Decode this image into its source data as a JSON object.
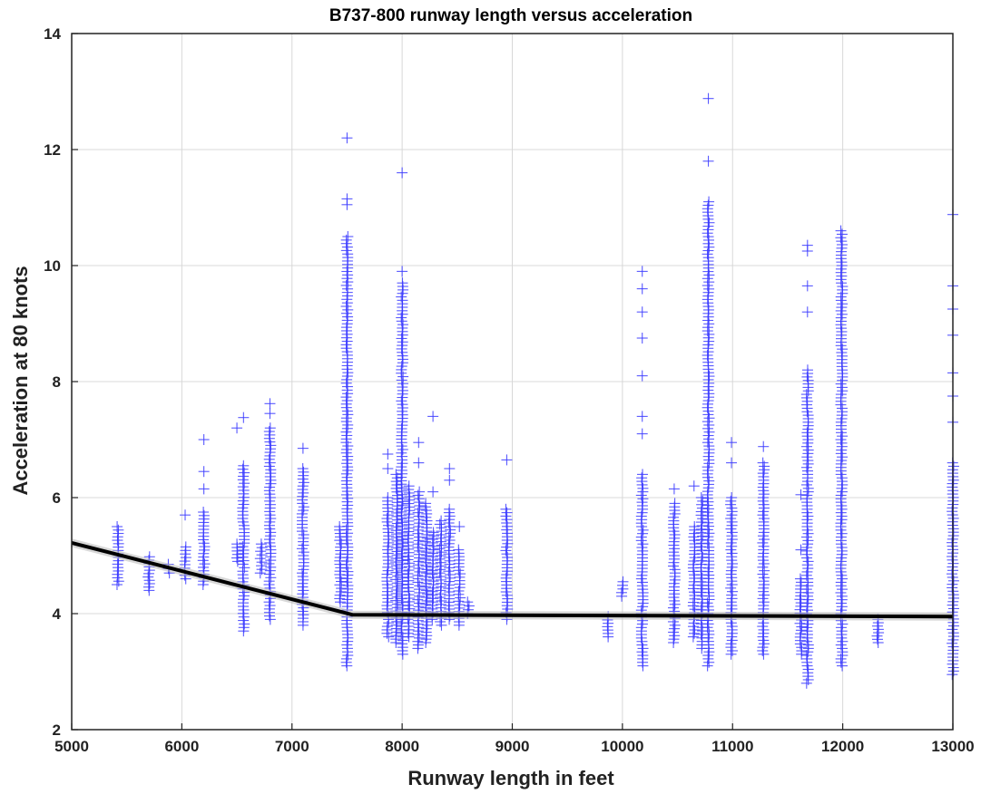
{
  "chart_data": {
    "type": "scatter",
    "title": "B737-800 runway length versus acceleration",
    "xlabel": "Runway length in feet",
    "ylabel": "Acceleration at 80 knots",
    "xlim": [
      5000,
      13000
    ],
    "ylim": [
      2,
      14
    ],
    "xticks": [
      5000,
      6000,
      7000,
      8000,
      9000,
      10000,
      11000,
      12000,
      13000
    ],
    "yticks": [
      2,
      4,
      6,
      8,
      10,
      12,
      14
    ],
    "grid": true,
    "marker": "+",
    "marker_color": "#3b3bff",
    "fit_color": "#000000",
    "fit_line": {
      "x": [
        5000,
        7550,
        13000
      ],
      "y": [
        5.22,
        3.98,
        3.95
      ]
    },
    "series": [
      {
        "columns": [
          {
            "x": 5420,
            "min": 4.5,
            "max": 5.5,
            "extra": []
          },
          {
            "x": 5700,
            "min": 4.4,
            "max": 4.98,
            "extra": []
          },
          {
            "x": 5880,
            "min": 4.7,
            "max": 4.85,
            "extra": []
          },
          {
            "x": 6030,
            "min": 4.6,
            "max": 5.15,
            "extra": [
              5.7
            ]
          },
          {
            "x": 6200,
            "min": 4.5,
            "max": 5.75,
            "extra": [
              6.15,
              6.45,
              7.0
            ]
          },
          {
            "x": 6500,
            "min": 4.9,
            "max": 5.2,
            "extra": [
              7.2
            ]
          },
          {
            "x": 6560,
            "min": 3.7,
            "max": 6.55,
            "extra": [
              7.38
            ]
          },
          {
            "x": 6720,
            "min": 4.7,
            "max": 5.2,
            "extra": []
          },
          {
            "x": 6800,
            "min": 3.9,
            "max": 7.2,
            "extra": [
              7.45,
              7.62
            ]
          },
          {
            "x": 7100,
            "min": 3.8,
            "max": 6.5,
            "extra": [
              6.85
            ]
          },
          {
            "x": 7440,
            "min": 4.2,
            "max": 5.5,
            "extra": []
          },
          {
            "x": 7500,
            "min": 3.1,
            "max": 10.5,
            "extra": [
              11.05,
              11.15,
              12.2
            ]
          },
          {
            "x": 7870,
            "min": 3.6,
            "max": 6.0,
            "extra": [
              6.5,
              6.75
            ]
          },
          {
            "x": 7950,
            "min": 3.5,
            "max": 6.4,
            "extra": []
          },
          {
            "x": 8000,
            "min": 3.3,
            "max": 9.7,
            "extra": [
              9.9,
              11.6
            ]
          },
          {
            "x": 8060,
            "min": 3.6,
            "max": 6.2,
            "extra": []
          },
          {
            "x": 8150,
            "min": 3.4,
            "max": 6.1,
            "extra": [
              6.6,
              6.95
            ]
          },
          {
            "x": 8220,
            "min": 3.5,
            "max": 5.9,
            "extra": []
          },
          {
            "x": 8280,
            "min": 3.9,
            "max": 5.4,
            "extra": [
              6.1,
              7.4
            ]
          },
          {
            "x": 8350,
            "min": 3.8,
            "max": 5.6,
            "extra": []
          },
          {
            "x": 8430,
            "min": 3.9,
            "max": 5.8,
            "extra": [
              6.3,
              6.5
            ]
          },
          {
            "x": 8520,
            "min": 3.8,
            "max": 5.1,
            "extra": [
              5.5
            ]
          },
          {
            "x": 8600,
            "min": 4.0,
            "max": 4.2,
            "extra": []
          },
          {
            "x": 8950,
            "min": 3.9,
            "max": 5.8,
            "extra": [
              6.65
            ]
          },
          {
            "x": 9870,
            "min": 3.6,
            "max": 3.95,
            "extra": []
          },
          {
            "x": 10000,
            "min": 4.3,
            "max": 4.55,
            "extra": []
          },
          {
            "x": 10180,
            "min": 3.1,
            "max": 6.4,
            "extra": [
              7.1,
              7.4,
              8.1,
              8.75,
              9.2,
              9.6,
              9.9
            ]
          },
          {
            "x": 10470,
            "min": 3.5,
            "max": 5.9,
            "extra": [
              6.15
            ]
          },
          {
            "x": 10650,
            "min": 3.6,
            "max": 5.5,
            "extra": [
              6.2
            ]
          },
          {
            "x": 10720,
            "min": 3.4,
            "max": 6.0,
            "extra": []
          },
          {
            "x": 10780,
            "min": 3.1,
            "max": 11.1,
            "extra": [
              11.8,
              12.88
            ]
          },
          {
            "x": 10990,
            "min": 3.3,
            "max": 6.0,
            "extra": [
              6.6,
              6.95
            ]
          },
          {
            "x": 11280,
            "min": 3.3,
            "max": 6.6,
            "extra": [
              6.88
            ]
          },
          {
            "x": 11620,
            "min": 3.3,
            "max": 4.6,
            "extra": [
              5.1,
              6.05
            ]
          },
          {
            "x": 11680,
            "min": 2.8,
            "max": 8.2,
            "extra": [
              9.2,
              9.65,
              10.25,
              10.35
            ]
          },
          {
            "x": 11990,
            "min": 3.1,
            "max": 10.6,
            "extra": []
          },
          {
            "x": 12320,
            "min": 3.5,
            "max": 3.9,
            "extra": []
          },
          {
            "x": 13000,
            "min": 2.95,
            "max": 6.6,
            "extra": [
              7.3,
              7.75,
              8.15,
              8.8,
              9.25,
              9.65,
              10.88
            ]
          }
        ]
      }
    ]
  }
}
